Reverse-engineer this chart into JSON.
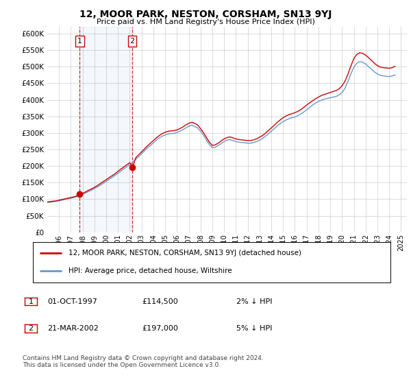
{
  "title": "12, MOOR PARK, NESTON, CORSHAM, SN13 9YJ",
  "subtitle": "Price paid vs. HM Land Registry's House Price Index (HPI)",
  "ylim": [
    0,
    620000
  ],
  "yticks": [
    0,
    50000,
    100000,
    150000,
    200000,
    250000,
    300000,
    350000,
    400000,
    450000,
    500000,
    550000,
    600000
  ],
  "legend_line1": "12, MOOR PARK, NESTON, CORSHAM, SN13 9YJ (detached house)",
  "legend_line2": "HPI: Average price, detached house, Wiltshire",
  "transaction1_label": "1",
  "transaction1_date": "01-OCT-1997",
  "transaction1_price": "£114,500",
  "transaction1_hpi": "2% ↓ HPI",
  "transaction1_year": 1997.75,
  "transaction1_value": 114500,
  "transaction2_label": "2",
  "transaction2_date": "21-MAR-2002",
  "transaction2_price": "£197,000",
  "transaction2_hpi": "5% ↓ HPI",
  "transaction2_year": 2002.21,
  "transaction2_value": 197000,
  "copyright_text": "Contains HM Land Registry data © Crown copyright and database right 2024.\nThis data is licensed under the Open Government Licence v3.0.",
  "line_color_red": "#cc0000",
  "line_color_blue": "#6699cc",
  "plot_bg_color": "#ffffff",
  "grid_color": "#cccccc",
  "hpi_years": [
    1995,
    1995.25,
    1995.5,
    1995.75,
    1996,
    1996.25,
    1996.5,
    1996.75,
    1997,
    1997.25,
    1997.5,
    1997.75,
    1998,
    1998.25,
    1998.5,
    1998.75,
    1999,
    1999.25,
    1999.5,
    1999.75,
    2000,
    2000.25,
    2000.5,
    2000.75,
    2001,
    2001.25,
    2001.5,
    2001.75,
    2002,
    2002.25,
    2002.5,
    2002.75,
    2003,
    2003.25,
    2003.5,
    2003.75,
    2004,
    2004.25,
    2004.5,
    2004.75,
    2005,
    2005.25,
    2005.5,
    2005.75,
    2006,
    2006.25,
    2006.5,
    2006.75,
    2007,
    2007.25,
    2007.5,
    2007.75,
    2008,
    2008.25,
    2008.5,
    2008.75,
    2009,
    2009.25,
    2009.5,
    2009.75,
    2010,
    2010.25,
    2010.5,
    2010.75,
    2011,
    2011.25,
    2011.5,
    2011.75,
    2012,
    2012.25,
    2012.5,
    2012.75,
    2013,
    2013.25,
    2013.5,
    2013.75,
    2014,
    2014.25,
    2014.5,
    2014.75,
    2015,
    2015.25,
    2015.5,
    2015.75,
    2016,
    2016.25,
    2016.5,
    2016.75,
    2017,
    2017.25,
    2017.5,
    2017.75,
    2018,
    2018.25,
    2018.5,
    2018.75,
    2019,
    2019.25,
    2019.5,
    2019.75,
    2020,
    2020.25,
    2020.5,
    2020.75,
    2021,
    2021.25,
    2021.5,
    2021.75,
    2022,
    2022.25,
    2022.5,
    2022.75,
    2023,
    2023.25,
    2023.5,
    2023.75,
    2024,
    2024.25,
    2024.5
  ],
  "hpi_values": [
    90000,
    91000,
    92000,
    93500,
    95000,
    97000,
    99000,
    101000,
    103000,
    105000,
    108000,
    111000,
    115000,
    119000,
    123000,
    127000,
    132000,
    137000,
    142000,
    148000,
    154000,
    160000,
    166000,
    172000,
    178000,
    185000,
    192000,
    198000,
    205000,
    212000,
    220000,
    228000,
    237000,
    246000,
    255000,
    262000,
    270000,
    278000,
    285000,
    290000,
    294000,
    297000,
    298000,
    299000,
    301000,
    305000,
    310000,
    315000,
    320000,
    323000,
    320000,
    315000,
    305000,
    293000,
    278000,
    265000,
    255000,
    257000,
    262000,
    268000,
    274000,
    278000,
    280000,
    277000,
    274000,
    272000,
    271000,
    270000,
    269000,
    269000,
    271000,
    274000,
    278000,
    283000,
    290000,
    297000,
    305000,
    313000,
    321000,
    328000,
    334000,
    339000,
    343000,
    346000,
    348000,
    352000,
    357000,
    363000,
    370000,
    377000,
    384000,
    390000,
    395000,
    399000,
    402000,
    404000,
    406000,
    408000,
    410000,
    415000,
    422000,
    435000,
    455000,
    478000,
    498000,
    510000,
    515000,
    513000,
    508000,
    500000,
    492000,
    484000,
    478000,
    474000,
    472000,
    471000,
    470000,
    472000,
    475000
  ],
  "price_paid_years": [
    1995,
    1995.25,
    1995.5,
    1995.75,
    1996,
    1996.25,
    1996.5,
    1996.75,
    1997,
    1997.25,
    1997.5,
    1997.75,
    1998,
    1998.25,
    1998.5,
    1998.75,
    1999,
    1999.25,
    1999.5,
    1999.75,
    2000,
    2000.25,
    2000.5,
    2000.75,
    2001,
    2001.25,
    2001.5,
    2001.75,
    2002,
    2002.25,
    2002.5,
    2002.75,
    2003,
    2003.25,
    2003.5,
    2003.75,
    2004,
    2004.25,
    2004.5,
    2004.75,
    2005,
    2005.25,
    2005.5,
    2005.75,
    2006,
    2006.25,
    2006.5,
    2006.75,
    2007,
    2007.25,
    2007.5,
    2007.75,
    2008,
    2008.25,
    2008.5,
    2008.75,
    2009,
    2009.25,
    2009.5,
    2009.75,
    2010,
    2010.25,
    2010.5,
    2010.75,
    2011,
    2011.25,
    2011.5,
    2011.75,
    2012,
    2012.25,
    2012.5,
    2012.75,
    2013,
    2013.25,
    2013.5,
    2013.75,
    2014,
    2014.25,
    2014.5,
    2014.75,
    2015,
    2015.25,
    2015.5,
    2015.75,
    2016,
    2016.25,
    2016.5,
    2016.75,
    2017,
    2017.25,
    2017.5,
    2017.75,
    2018,
    2018.25,
    2018.5,
    2018.75,
    2019,
    2019.25,
    2019.5,
    2019.75,
    2020,
    2020.25,
    2020.5,
    2020.75,
    2021,
    2021.25,
    2021.5,
    2021.75,
    2022,
    2022.25,
    2022.5,
    2022.75,
    2023,
    2023.25,
    2023.5,
    2023.75,
    2024,
    2024.25,
    2024.5
  ],
  "price_paid_values": [
    92000,
    93000,
    94000,
    95000,
    97000,
    99000,
    101000,
    103000,
    105000,
    107000,
    110000,
    114500,
    118000,
    122000,
    127000,
    131000,
    136000,
    141000,
    147000,
    153000,
    159000,
    165000,
    171000,
    177000,
    184000,
    191000,
    197500,
    204000,
    210000,
    197000,
    225000,
    234000,
    243000,
    252000,
    261000,
    269000,
    277000,
    285000,
    292000,
    298000,
    302000,
    305000,
    306000,
    307000,
    309000,
    313000,
    318000,
    324000,
    329000,
    332000,
    329000,
    324000,
    313000,
    301000,
    286000,
    272000,
    262000,
    264000,
    269000,
    276000,
    282000,
    286000,
    288000,
    285000,
    282000,
    280000,
    279000,
    278000,
    277000,
    277000,
    279000,
    282000,
    287000,
    292000,
    299000,
    307000,
    315000,
    323000,
    332000,
    339000,
    346000,
    351000,
    355000,
    358000,
    361000,
    365000,
    370000,
    377000,
    384000,
    391000,
    397000,
    403000,
    408000,
    413000,
    416000,
    419000,
    422000,
    425000,
    428000,
    433000,
    442000,
    456000,
    477000,
    502000,
    524000,
    537000,
    542000,
    540000,
    535000,
    527000,
    519000,
    510000,
    503000,
    499000,
    497000,
    496000,
    495000,
    497000,
    501000
  ],
  "xtick_years": [
    1996,
    1997,
    1998,
    1999,
    2000,
    2001,
    2002,
    2003,
    2004,
    2005,
    2006,
    2007,
    2008,
    2009,
    2010,
    2011,
    2012,
    2013,
    2014,
    2015,
    2016,
    2017,
    2018,
    2019,
    2020,
    2021,
    2022,
    2023,
    2024,
    2025
  ]
}
